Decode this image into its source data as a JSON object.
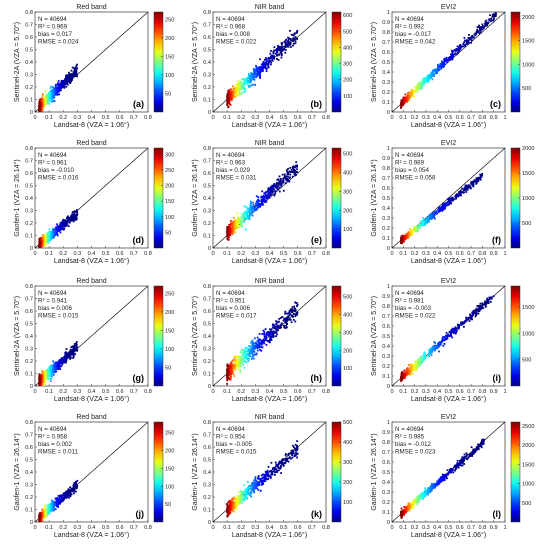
{
  "figure": {
    "xlabel": "Landsat-8 (VZA = 1.06°)",
    "tick_labels_01": [
      "0",
      "0.1",
      "0.2",
      "0.3",
      "0.4",
      "0.5",
      "0.6",
      "0.7",
      "0.8"
    ],
    "tick_labels_evi": [
      "0",
      "0.1",
      "0.2",
      "0.3",
      "0.4",
      "0.5",
      "0.6",
      "0.7",
      "0.8",
      "0.9",
      "1"
    ],
    "stat_labels": {
      "n": "N = ",
      "r2": "R² = ",
      "bias": "bias = ",
      "rmse": "RMSE = "
    }
  },
  "chart_data": [
    {
      "type": "scatter",
      "panel": "(a)",
      "title": "Red band",
      "ylabel": "Sentinel-2A (VZA = 5.70°)",
      "xlim": [
        0,
        0.8
      ],
      "ylim": [
        0,
        0.8
      ],
      "n": "40694",
      "r2": "0.969",
      "bias": "0.017",
      "rmse": "0.024",
      "cbar_ticks": [
        50,
        100,
        150,
        200,
        250
      ],
      "cbar_max": 270,
      "x_range": [
        0.03,
        0.3
      ],
      "slope": 1.08,
      "offset": 0.01,
      "spread": 0.018,
      "one_to_one": true
    },
    {
      "type": "scatter",
      "panel": "(b)",
      "title": "NIR band",
      "ylabel": "Sentinel-2A (VZA = 5.70°)",
      "xlim": [
        0,
        0.8
      ],
      "ylim": [
        0,
        0.8
      ],
      "n": "40694",
      "r2": "0.968",
      "bias": "0.008",
      "rmse": "0.022",
      "cbar_ticks": [
        100,
        200,
        300,
        400,
        500,
        600
      ],
      "cbar_max": 620,
      "x_range": [
        0.1,
        0.6
      ],
      "slope": 1.02,
      "offset": 0.0,
      "spread": 0.022,
      "one_to_one": true
    },
    {
      "type": "scatter",
      "panel": "(c)",
      "title": "EVI2",
      "ylabel": "Sentinel-2A (VZA = 5.70°)",
      "xlim": [
        0,
        1
      ],
      "ylim": [
        0,
        1
      ],
      "n": "40694",
      "r2": "0.992",
      "bias": "-0.017",
      "rmse": "0.042",
      "cbar_ticks": [
        500,
        1000,
        1500,
        2000
      ],
      "cbar_max": 2100,
      "x_range": [
        0.08,
        0.92
      ],
      "slope": 1.06,
      "offset": 0.0,
      "spread": 0.018,
      "one_to_one": true
    },
    {
      "type": "scatter",
      "panel": "(d)",
      "title": "Red band",
      "ylabel": "Gaofen-1 (VZA = 26.14°)",
      "xlim": [
        0,
        0.8
      ],
      "ylim": [
        0,
        0.8
      ],
      "n": "40694",
      "r2": "0.961",
      "bias": "-0.010",
      "rmse": "0.016",
      "cbar_ticks": [
        50,
        100,
        150,
        200,
        250,
        300
      ],
      "cbar_max": 320,
      "x_range": [
        0.03,
        0.3
      ],
      "slope": 0.92,
      "offset": 0.0,
      "spread": 0.015,
      "one_to_one": true
    },
    {
      "type": "scatter",
      "panel": "(e)",
      "title": "NIR band",
      "ylabel": "Gaofen-1 (VZA = 26.14°)",
      "xlim": [
        0,
        0.8
      ],
      "ylim": [
        0,
        0.8
      ],
      "n": "40694",
      "r2": "0.963",
      "bias": "0.029",
      "rmse": "0.031",
      "cbar_ticks": [
        100,
        200,
        300,
        400,
        500
      ],
      "cbar_max": 530,
      "x_range": [
        0.1,
        0.6
      ],
      "slope": 1.05,
      "offset": 0.02,
      "spread": 0.02,
      "one_to_one": true
    },
    {
      "type": "scatter",
      "panel": "(f)",
      "title": "EVI2",
      "ylabel": "Gaofen-1 (VZA = 26.14°)",
      "xlim": [
        0,
        1
      ],
      "ylim": [
        0,
        1
      ],
      "n": "40694",
      "r2": "0.989",
      "bias": "0.054",
      "rmse": "0.058",
      "cbar_ticks": [
        500,
        1000,
        1500,
        2000
      ],
      "cbar_max": 2000,
      "x_range": [
        0.08,
        0.8
      ],
      "slope": 0.9,
      "offset": 0.0,
      "spread": 0.016,
      "one_to_one": true
    },
    {
      "type": "scatter",
      "panel": "(g)",
      "title": "Red band",
      "ylabel": "Sentinel-2A (VZA = 5.70°)",
      "xlim": [
        0,
        0.8
      ],
      "ylim": [
        0,
        0.8
      ],
      "n": "40694",
      "r2": "0.941",
      "bias": "0.006",
      "rmse": "0.015",
      "cbar_ticks": [
        50,
        100,
        150,
        200,
        250
      ],
      "cbar_max": 270,
      "x_range": [
        0.03,
        0.3
      ],
      "slope": 1.02,
      "offset": 0.005,
      "spread": 0.018,
      "one_to_one": true
    },
    {
      "type": "scatter",
      "panel": "(h)",
      "title": "NIR band",
      "ylabel": "Sentinel-2A (VZA = 5.70°)",
      "xlim": [
        0,
        0.8
      ],
      "ylim": [
        0,
        0.8
      ],
      "n": "40694",
      "r2": "0.951",
      "bias": "0.006",
      "rmse": "0.017",
      "cbar_ticks": [
        100,
        200,
        300,
        400,
        500
      ],
      "cbar_max": 560,
      "x_range": [
        0.1,
        0.6
      ],
      "slope": 1.01,
      "offset": 0.005,
      "spread": 0.025,
      "one_to_one": true
    },
    {
      "type": "scatter",
      "panel": "(i)",
      "title": "EVI2",
      "ylabel": "Sentinel-2A (VZA = 5.70°)",
      "xlim": [
        0,
        1
      ],
      "ylim": [
        0,
        1
      ],
      "n": "40694",
      "r2": "0.981",
      "bias": "-0.003",
      "rmse": "0.022",
      "cbar_ticks": [
        500,
        1000,
        1500
      ],
      "cbar_max": 1900,
      "x_range": [
        0.08,
        0.9
      ],
      "slope": 1.0,
      "offset": 0.0,
      "spread": 0.02,
      "one_to_one": true
    },
    {
      "type": "scatter",
      "panel": "(j)",
      "title": "Red band",
      "ylabel": "Gaofen-1 (VZA = 26.14°)",
      "xlim": [
        0,
        0.8
      ],
      "ylim": [
        0,
        0.8
      ],
      "n": "40694",
      "r2": "0.958",
      "bias": "0.002",
      "rmse": "0.011",
      "cbar_ticks": [
        50,
        100,
        150,
        200,
        250
      ],
      "cbar_max": 280,
      "x_range": [
        0.03,
        0.3
      ],
      "slope": 0.98,
      "offset": 0.003,
      "spread": 0.014,
      "one_to_one": true
    },
    {
      "type": "scatter",
      "panel": "(k)",
      "title": "NIR band",
      "ylabel": "Gaofen-1 (VZA = 26.14°)",
      "xlim": [
        0,
        0.8
      ],
      "ylim": [
        0,
        0.8
      ],
      "n": "40694",
      "r2": "0.954",
      "bias": "-0.005",
      "rmse": "0.015",
      "cbar_ticks": [
        100,
        200,
        300,
        400,
        500
      ],
      "cbar_max": 500,
      "x_range": [
        0.1,
        0.6
      ],
      "slope": 0.97,
      "offset": 0.0,
      "spread": 0.02,
      "one_to_one": true
    },
    {
      "type": "scatter",
      "panel": "(l)",
      "title": "EVI2",
      "ylabel": "Gaofen-1 (VZA = 26.14°)",
      "xlim": [
        0,
        1
      ],
      "ylim": [
        0,
        1
      ],
      "n": "40694",
      "r2": "0.985",
      "bias": "-0.012",
      "rmse": "0.023",
      "cbar_ticks": [
        500,
        1000,
        1500,
        2000,
        2500
      ],
      "cbar_max": 2600,
      "x_range": [
        0.08,
        0.82
      ],
      "slope": 0.98,
      "offset": 0.0,
      "spread": 0.018,
      "one_to_one": true
    }
  ]
}
